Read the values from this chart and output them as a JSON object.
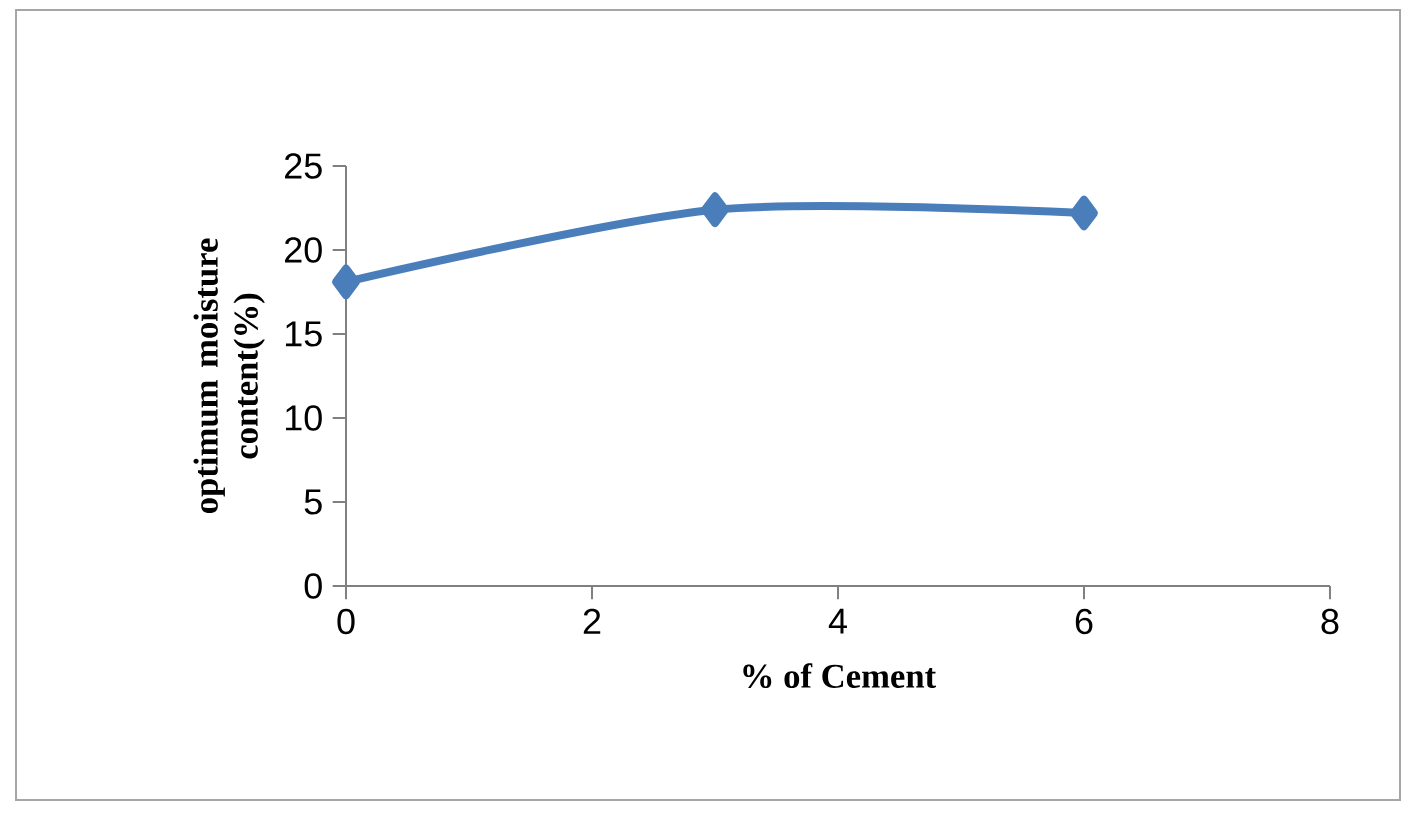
{
  "chart_data": {
    "type": "line",
    "xlabel": "% of Cement",
    "ylabel": "optimum moisture content(%)",
    "x": [
      0,
      3,
      6
    ],
    "series": [
      {
        "color": "#4a7ebb",
        "values": [
          18.1,
          22.4,
          22.2
        ]
      }
    ],
    "marker": "diamond",
    "xlim": [
      0,
      8
    ],
    "ylim": [
      0,
      25
    ],
    "xticks": [
      0,
      2,
      4,
      6,
      8
    ],
    "yticks": [
      0,
      5,
      10,
      15,
      20,
      25
    ]
  }
}
